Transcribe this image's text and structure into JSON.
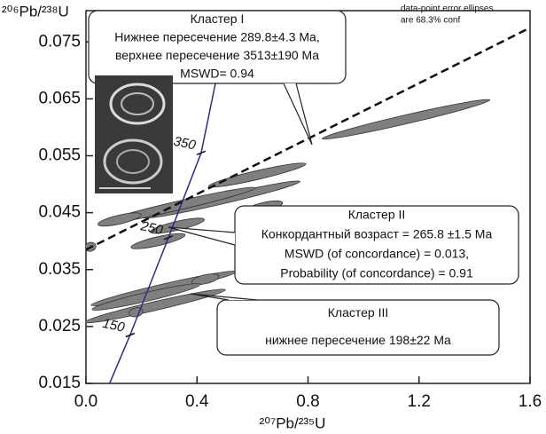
{
  "chart_data": {
    "type": "concordia",
    "x_label": "²⁰⁷Pb/²³⁵U",
    "y_label": "²⁰⁶Pb/²³⁸U",
    "note": [
      "data-point error ellipses",
      "are 68.3% conf"
    ],
    "xlim": [
      0,
      1.6
    ],
    "ylim": [
      0.015,
      0.0805
    ],
    "xticks": [
      {
        "value": 0,
        "label": "0.0"
      },
      0.4,
      0.8,
      1.2,
      1.6
    ],
    "yticks": [
      0.015,
      0.025,
      0.035,
      0.045,
      0.055,
      0.065,
      0.075
    ],
    "ellipses": {
      "color": "#7f7f7f",
      "x": [
        1.153,
        0.617,
        0.489,
        0.329,
        0.64,
        0.121,
        0.329,
        0.016,
        0.26,
        0.281,
        0.43,
        0.249,
        0.217,
        0.18
      ],
      "y": [
        0.0614,
        0.0516,
        0.0473,
        0.0462,
        0.046,
        0.0438,
        0.0427,
        0.039,
        0.04,
        0.0317,
        0.0333,
        0.0286,
        0.0302,
        0.0275
      ],
      "x_err": [
        0.31,
        0.18,
        0.29,
        0.29,
        0.07,
        0.08,
        0.1,
        0.02,
        0.1,
        0.27,
        0.05,
        0.26,
        0.2,
        0.025
      ]
    },
    "concordia": {
      "color": "#2b2b8c",
      "x": [
        0.085,
        0.159,
        0.297,
        0.415,
        0.52
      ],
      "y": [
        0.015,
        0.0235,
        0.0406,
        0.0555,
        0.0805
      ]
    },
    "age_ticks": {
      "labels": [
        150,
        250,
        350
      ],
      "x": [
        0.159,
        0.297,
        0.415
      ],
      "y": [
        0.0235,
        0.0406,
        0.0555
      ]
    },
    "discordia": {
      "x": [
        0,
        1.6
      ],
      "y": [
        0.0385,
        0.0775
      ]
    },
    "annotations": [
      [
        "Кластер I",
        "Нижнее пересечение 289.8±4.3 Ma,",
        "верхнее пересечение  3513±190 Ma",
        "MSWD= 0.94"
      ],
      [
        "Кластер II",
        "Конкордантный возраст  = 265.8 ±1.5 Ma",
        "MSWD (of concordance) = 0.013,",
        "Probability (of concordance) = 0.91"
      ],
      [
        "Кластер III",
        "нижнее пересечение 198±22 Ma"
      ]
    ]
  }
}
